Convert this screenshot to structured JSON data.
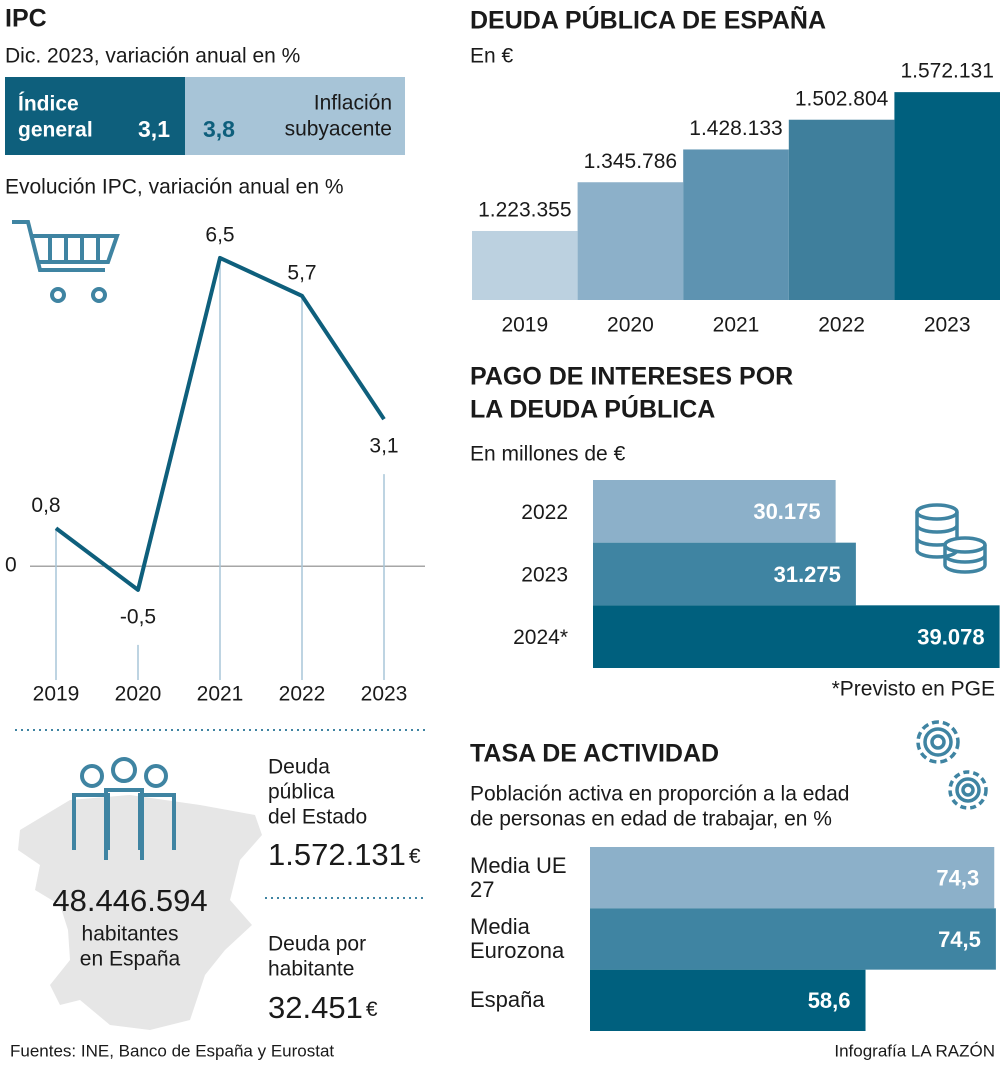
{
  "ipc_header": {
    "title": "IPC",
    "subtitle": "Dic. 2023, variación anual en %",
    "boxes": [
      {
        "label": [
          "Índice",
          "general"
        ],
        "value": "3,1"
      },
      {
        "label": [
          "Inflación",
          "subyacente"
        ],
        "value": "3,8"
      }
    ]
  },
  "chart_data": [
    {
      "type": "line",
      "title": "Evolución IPC, variación anual en %",
      "categories": [
        "2019",
        "2020",
        "2021",
        "2022",
        "2023"
      ],
      "values": [
        0.8,
        -0.5,
        6.5,
        5.7,
        3.1
      ],
      "value_labels": [
        "0,8",
        "-0,5",
        "6,5",
        "5,7",
        "3,1"
      ],
      "color": "#0e5f7c",
      "ylim": [
        -2.4,
        7.3
      ],
      "yticks": [
        0
      ]
    },
    {
      "type": "bar",
      "title": "DEUDA PÚBLICA DE ESPAÑA",
      "subtitle": "En €",
      "categories": [
        "2019",
        "2020",
        "2021",
        "2022",
        "2023"
      ],
      "values": [
        1223355,
        1345786,
        1428133,
        1502804,
        1572131
      ],
      "value_labels": [
        "1.223.355",
        "1.345.786",
        "1.428.133",
        "1.502.804",
        "1.572.131"
      ],
      "colors": [
        "#bcd1e0",
        "#8cb0c9",
        "#5e93b1",
        "#3f7f9c",
        "#00607e"
      ],
      "ylim": [
        1050000,
        1580000
      ]
    },
    {
      "type": "hbar",
      "title": [
        "PAGO DE INTERESES POR",
        "LA DEUDA PÚBLICA"
      ],
      "subtitle": "En millones de €",
      "categories": [
        "2022",
        "2023",
        "2024*"
      ],
      "values": [
        30175,
        31275,
        39078
      ],
      "value_labels": [
        "30.175",
        "31.275",
        "39.078"
      ],
      "colors": [
        "#8cb0c9",
        "#3f84a2",
        "#00607e"
      ],
      "xlim": [
        17000,
        39100
      ],
      "note": "*Previsto en PGE"
    },
    {
      "type": "hbar",
      "title": "TASA DE ACTIVIDAD",
      "subtitle": [
        "Población activa en proporción a la edad",
        "de personas en edad de trabajar, en %"
      ],
      "categories": [
        "Media UE 27",
        "Media Eurozona",
        "España"
      ],
      "values": [
        74.3,
        74.5,
        58.6
      ],
      "value_labels": [
        "74,3",
        "74,5",
        "58,6"
      ],
      "colors": [
        "#8cb0c9",
        "#3f84a2",
        "#00607e"
      ],
      "xlim": [
        25,
        75
      ]
    }
  ],
  "stats": {
    "population": "48.446.594",
    "population_label": [
      "habitantes",
      "en España"
    ],
    "debt_label": [
      "Deuda",
      "pública",
      "del Estado"
    ],
    "debt": "1.572.131",
    "currency": "€",
    "per_capita_label": [
      "Deuda por",
      "habitante"
    ],
    "per_capita": "32.451"
  },
  "footer": {
    "source": "Fuentes: INE, Banco de España y Eurostat",
    "credit": "Infografía LA RAZÓN"
  }
}
